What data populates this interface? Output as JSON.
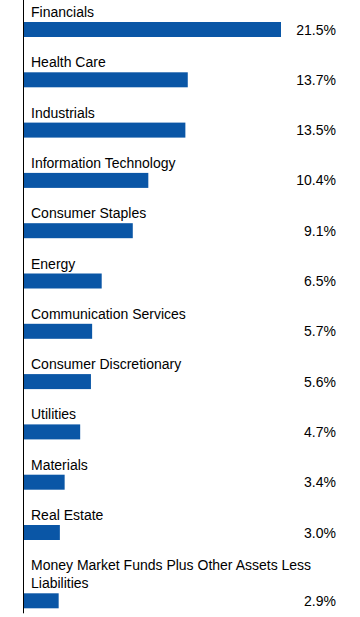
{
  "chart_data": {
    "type": "bar",
    "orientation": "horizontal",
    "categories": [
      "Financials",
      "Health Care",
      "Industrials",
      "Information Technology",
      "Consumer Staples",
      "Energy",
      "Communication Services",
      "Consumer Discretionary",
      "Utilities",
      "Materials",
      "Real Estate",
      "Money Market Funds Plus Other Assets Less Liabilities"
    ],
    "values": [
      21.5,
      13.7,
      13.5,
      10.4,
      9.1,
      6.5,
      5.7,
      5.6,
      4.7,
      3.4,
      3.0,
      2.9
    ],
    "value_labels": [
      "21.5%",
      "13.7%",
      "13.5%",
      "10.4%",
      "9.1%",
      "6.5%",
      "5.7%",
      "5.6%",
      "4.7%",
      "3.4%",
      "3.0%",
      "2.9%"
    ],
    "color": "#0a56a6",
    "data_labels": true,
    "tick_labels": "y",
    "grid": false
  }
}
